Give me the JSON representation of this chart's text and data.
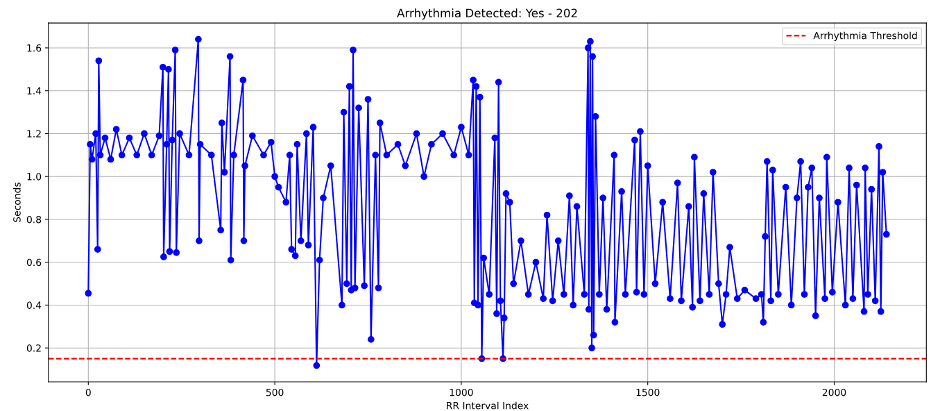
{
  "chart_data": {
    "type": "line",
    "title": "Arrhythmia Detected: Yes - 202",
    "xlabel": "RR Interval Index",
    "ylabel": "Seconds",
    "xlim": [
      -107,
      2247
    ],
    "ylim": [
      0.042,
      1.716
    ],
    "xticks": [
      0,
      500,
      1000,
      1500,
      2000
    ],
    "yticks": [
      0.2,
      0.4,
      0.6,
      0.8,
      {
        "value": 1.0,
        "label": "1.0"
      },
      1.2,
      1.4,
      1.6
    ],
    "grid": true,
    "legend": "top right",
    "marker": "circle",
    "line_style": "solid",
    "series": [
      {
        "color": "#0000ff",
        "x": [
          0,
          5,
          10,
          20,
          25,
          28,
          32,
          45,
          60,
          75,
          90,
          110,
          130,
          150,
          170,
          190,
          200,
          202,
          210,
          215,
          218,
          225,
          233,
          236,
          245,
          270,
          295,
          297,
          300,
          330,
          355,
          358,
          365,
          380,
          382,
          390,
          415,
          417,
          420,
          440,
          470,
          490,
          500,
          510,
          530,
          540,
          545,
          555,
          560,
          570,
          585,
          590,
          603,
          612,
          620,
          630,
          650,
          680,
          685,
          693,
          700,
          705,
          710,
          715,
          725,
          740,
          750,
          758,
          770,
          778,
          782,
          800,
          830,
          850,
          880,
          900,
          920,
          950,
          980,
          1000,
          1020,
          1032,
          1035,
          1040,
          1045,
          1050,
          1055,
          1060,
          1075,
          1090,
          1095,
          1100,
          1105,
          1112,
          1115,
          1120,
          1130,
          1140,
          1160,
          1180,
          1200,
          1220,
          1230,
          1245,
          1260,
          1275,
          1290,
          1300,
          1310,
          1330,
          1340,
          1342,
          1346,
          1350,
          1352,
          1355,
          1360,
          1370,
          1380,
          1390,
          1410,
          1412,
          1430,
          1440,
          1465,
          1470,
          1480,
          1490,
          1500,
          1520,
          1540,
          1560,
          1580,
          1590,
          1610,
          1620,
          1625,
          1640,
          1650,
          1665,
          1675,
          1690,
          1700,
          1710,
          1720,
          1740,
          1760,
          1790,
          1805,
          1810,
          1815,
          1820,
          1830,
          1835,
          1850,
          1870,
          1885,
          1900,
          1910,
          1920,
          1930,
          1940,
          1950,
          1960,
          1975,
          1980,
          1995,
          2010,
          2030,
          2040,
          2050,
          2060,
          2080,
          2083,
          2090,
          2100,
          2110,
          2120,
          2125,
          2130,
          2140
        ],
        "values": [
          0.455,
          1.15,
          1.08,
          1.2,
          0.66,
          1.54,
          1.1,
          1.18,
          1.08,
          1.22,
          1.1,
          1.18,
          1.1,
          1.2,
          1.1,
          1.19,
          1.51,
          0.625,
          1.15,
          1.5,
          0.65,
          1.17,
          1.59,
          0.645,
          1.2,
          1.1,
          1.64,
          0.7,
          1.15,
          1.1,
          0.75,
          1.25,
          1.02,
          1.56,
          0.61,
          1.1,
          1.45,
          0.7,
          1.05,
          1.19,
          1.1,
          1.16,
          1.0,
          0.95,
          0.88,
          1.1,
          0.66,
          0.63,
          1.15,
          0.7,
          1.2,
          0.68,
          1.23,
          0.118,
          0.61,
          0.9,
          1.05,
          0.4,
          1.3,
          0.5,
          1.42,
          0.47,
          1.59,
          0.48,
          1.32,
          0.49,
          1.36,
          0.24,
          1.1,
          0.48,
          1.25,
          1.1,
          1.15,
          1.05,
          1.2,
          1.0,
          1.15,
          1.2,
          1.1,
          1.23,
          1.1,
          1.45,
          0.41,
          1.42,
          0.4,
          1.37,
          0.15,
          0.62,
          0.45,
          1.18,
          0.36,
          1.44,
          0.42,
          0.15,
          0.34,
          0.92,
          0.88,
          0.5,
          0.7,
          0.45,
          0.6,
          0.43,
          0.82,
          0.42,
          0.7,
          0.45,
          0.91,
          0.4,
          0.86,
          0.45,
          1.6,
          0.38,
          1.63,
          0.2,
          1.56,
          0.26,
          1.28,
          0.45,
          0.9,
          0.38,
          1.1,
          0.32,
          0.93,
          0.45,
          1.17,
          0.46,
          1.21,
          0.45,
          1.05,
          0.5,
          0.88,
          0.43,
          0.97,
          0.42,
          0.86,
          0.39,
          1.09,
          0.42,
          0.92,
          0.45,
          1.02,
          0.5,
          0.31,
          0.45,
          0.67,
          0.43,
          0.47,
          0.43,
          0.45,
          0.32,
          0.72,
          1.07,
          0.42,
          1.03,
          0.45,
          0.95,
          0.4,
          0.9,
          1.07,
          0.45,
          0.95,
          1.04,
          0.35,
          0.9,
          0.43,
          1.09,
          0.46,
          0.88,
          0.4,
          1.04,
          0.43,
          0.96,
          0.37,
          1.04,
          0.45,
          0.94,
          0.42,
          1.14,
          0.37,
          1.02,
          0.73
        ]
      }
    ],
    "ref_lines": [
      {
        "axis": "y",
        "value": 0.15,
        "label": "Arrhythmia Threshold",
        "color": "#ff0000",
        "line_style": "dashed"
      }
    ]
  }
}
